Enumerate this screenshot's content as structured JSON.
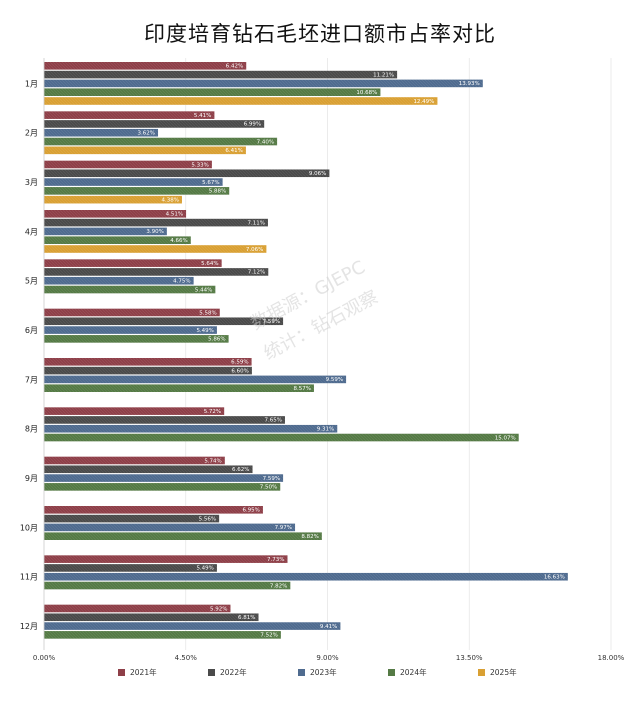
{
  "title": "印度培育钻石毛坯进口额市占率对比",
  "watermark": {
    "line1": "数据源：GJEPC",
    "line2": "统计：钻石观察"
  },
  "chart_data": {
    "type": "bar",
    "orientation": "horizontal",
    "title": "印度培育钻石毛坯进口额市占率对比",
    "xlabel": "",
    "ylabel": "",
    "xlim": [
      0,
      18
    ],
    "x_ticks": [
      "0.00%",
      "4.50%",
      "9.00%",
      "13.50%",
      "18.00%"
    ],
    "x_tick_values": [
      0,
      4.5,
      9,
      13.5,
      18
    ],
    "grid": true,
    "legend_position": "bottom",
    "categories": [
      "1月",
      "2月",
      "3月",
      "4月",
      "5月",
      "6月",
      "7月",
      "8月",
      "9月",
      "10月",
      "11月",
      "12月"
    ],
    "series": [
      {
        "name": "2021年",
        "color": "#8e3f48",
        "values": [
          6.42,
          5.41,
          5.33,
          4.51,
          5.64,
          5.58,
          6.59,
          5.72,
          5.74,
          6.95,
          7.73,
          5.92
        ],
        "labels": [
          "6.42%",
          "5.41%",
          "5.33%",
          "4.51%",
          "5.64%",
          "5.58%",
          "6.59%",
          "5.72%",
          "5.74%",
          "6.95%",
          "7.73%",
          "5.92%"
        ]
      },
      {
        "name": "2022年",
        "color": "#4a4a4a",
        "values": [
          11.21,
          6.99,
          9.06,
          7.11,
          7.12,
          7.59,
          6.6,
          7.65,
          6.62,
          5.56,
          5.49,
          6.81
        ],
        "labels": [
          "11.21%",
          "6.99%",
          "9.06%",
          "7.11%",
          "7.12%",
          "7.59%",
          "6.60%",
          "7.65%",
          "6.62%",
          "5.56%",
          "5.49%",
          "6.81%"
        ]
      },
      {
        "name": "2023年",
        "color": "#4f6b8f",
        "values": [
          13.93,
          3.62,
          5.67,
          3.9,
          4.75,
          5.49,
          9.59,
          9.31,
          7.59,
          7.97,
          16.63,
          9.41
        ],
        "labels": [
          "13.93%",
          "3.62%",
          "5.67%",
          "3.90%",
          "4.75%",
          "5.49%",
          "9.59%",
          "9.31%",
          "7.59%",
          "7.97%",
          "16.63%",
          "9.41%"
        ]
      },
      {
        "name": "2024年",
        "color": "#557a45",
        "values": [
          10.68,
          7.4,
          5.88,
          4.66,
          5.44,
          5.86,
          8.57,
          15.07,
          7.5,
          8.82,
          7.82,
          7.52
        ],
        "labels": [
          "10.68%",
          "7.40%",
          "5.88%",
          "4.66%",
          "5.44%",
          "5.86%",
          "8.57%",
          "15.07%",
          "7.50%",
          "8.82%",
          "7.82%",
          "7.52%"
        ]
      },
      {
        "name": "2025年",
        "color": "#d9a033",
        "values": [
          12.49,
          6.41,
          4.38,
          7.06,
          null,
          null,
          null,
          null,
          null,
          null,
          null,
          null
        ],
        "labels": [
          "12.49%",
          "6.41%",
          "4.38%",
          "7.06%",
          null,
          null,
          null,
          null,
          null,
          null,
          null,
          null
        ]
      }
    ]
  }
}
